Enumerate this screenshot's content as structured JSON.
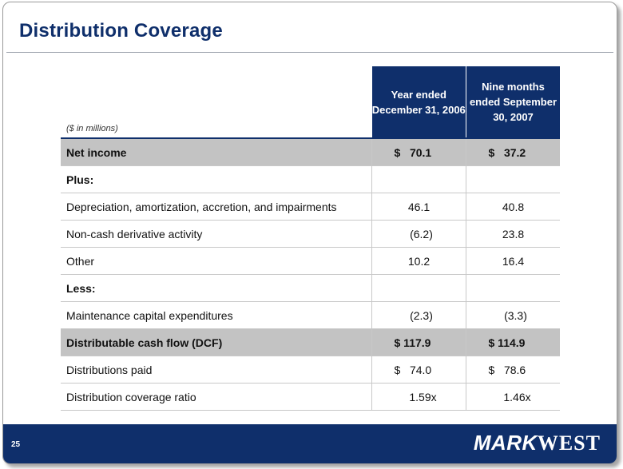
{
  "slide": {
    "title": "Distribution Coverage",
    "page_number": "25",
    "logo_mark": "MARK",
    "logo_west": "WEST"
  },
  "table": {
    "units_note": "($ in millions)",
    "col1_header": "Year ended December 31, 2006",
    "col2_header": "Nine months ended September 30, 2007",
    "rows": [
      {
        "label": "Net income",
        "v1": "$   70.1",
        "v2": "$   37.2"
      },
      {
        "label": "Plus:",
        "v1": "",
        "v2": ""
      },
      {
        "label": "Depreciation, amortization, accretion, and impairments",
        "v1": "46.1",
        "v2": "40.8"
      },
      {
        "label": "Non-cash derivative activity",
        "v1": "(6.2)",
        "v2": "23.8"
      },
      {
        "label": "Other",
        "v1": "10.2",
        "v2": "16.4"
      },
      {
        "label": "Less:",
        "v1": "",
        "v2": ""
      },
      {
        "label": "Maintenance capital expenditures",
        "v1": "(2.3)",
        "v2": "(3.3)"
      },
      {
        "label": "Distributable cash flow (DCF)",
        "v1": "$ 117.9",
        "v2": "$ 114.9"
      },
      {
        "label": "Distributions paid",
        "v1": "$   74.0",
        "v2": "$   78.6"
      },
      {
        "label": "Distribution coverage ratio",
        "v1": "1.59x",
        "v2": "1.46x"
      }
    ]
  }
}
